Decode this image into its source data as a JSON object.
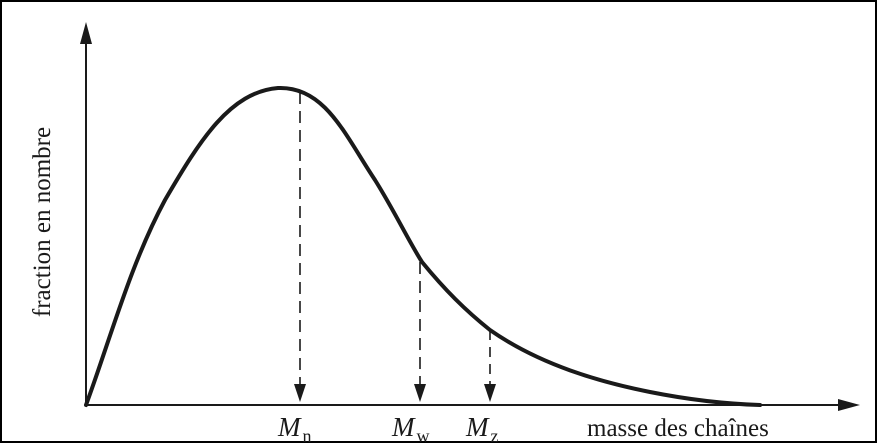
{
  "axes": {
    "ylabel": "fraction en nombre",
    "xlabel": "masse des chaînes"
  },
  "markers": [
    {
      "main": "M",
      "sub": "n"
    },
    {
      "main": "M",
      "sub": "w"
    },
    {
      "main": "M",
      "sub": "z"
    }
  ],
  "colors": {
    "ink": "#1a1a1a",
    "border": "#000000",
    "background": "#ffffff"
  }
}
